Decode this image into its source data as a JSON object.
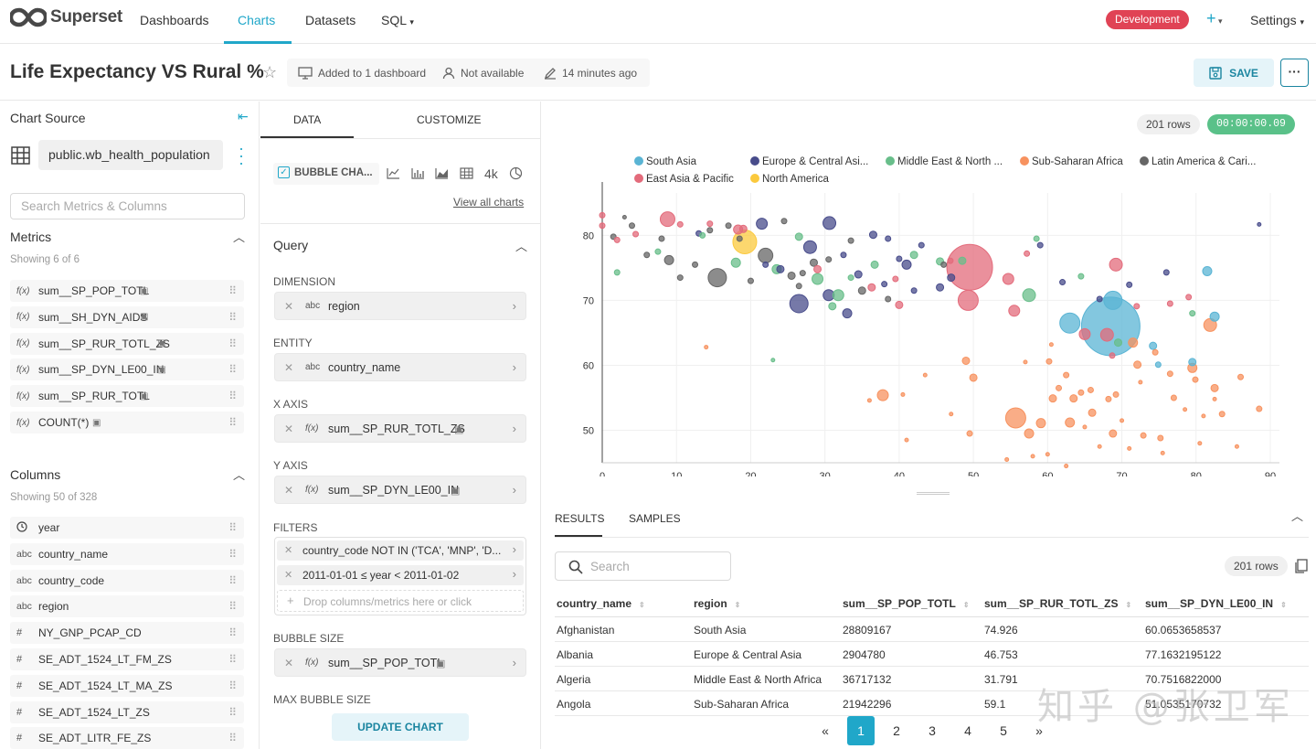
{
  "nav": {
    "brand": "Superset",
    "links": [
      "Dashboards",
      "Charts",
      "Datasets",
      "SQL"
    ],
    "active": "Charts",
    "env_badge": "Development",
    "settings": "Settings"
  },
  "header": {
    "title": "Life Expectancy VS Rural %",
    "added_to": "Added to 1 dashboard",
    "owner": "Not available",
    "modified": "14 minutes ago",
    "save_label": "SAVE"
  },
  "left": {
    "chart_source_label": "Chart Source",
    "dataset": "public.wb_health_population",
    "search_placeholder": "Search Metrics & Columns",
    "metrics_label": "Metrics",
    "metrics_count": "Showing 6 of 6",
    "metrics": [
      {
        "type": "f(x)",
        "name": "sum__SP_POP_TOTL"
      },
      {
        "type": "f(x)",
        "name": "sum__SH_DYN_AIDS"
      },
      {
        "type": "f(x)",
        "name": "sum__SP_RUR_TOTL_ZS"
      },
      {
        "type": "f(x)",
        "name": "sum__SP_DYN_LE00_IN"
      },
      {
        "type": "f(x)",
        "name": "sum__SP_RUR_TOTL"
      },
      {
        "type": "f(x)",
        "name": "COUNT(*)"
      }
    ],
    "columns_label": "Columns",
    "columns_count": "Showing 50 of 328",
    "columns": [
      {
        "type": "clock",
        "name": "year"
      },
      {
        "type": "abc",
        "name": "country_name"
      },
      {
        "type": "abc",
        "name": "country_code"
      },
      {
        "type": "abc",
        "name": "region"
      },
      {
        "type": "#",
        "name": "NY_GNP_PCAP_CD"
      },
      {
        "type": "#",
        "name": "SE_ADT_1524_LT_FM_ZS"
      },
      {
        "type": "#",
        "name": "SE_ADT_1524_LT_MA_ZS"
      },
      {
        "type": "#",
        "name": "SE_ADT_1524_LT_ZS"
      },
      {
        "type": "#",
        "name": "SE_ADT_LITR_FE_ZS"
      }
    ]
  },
  "mid": {
    "tabs": [
      "DATA",
      "CUSTOMIZE"
    ],
    "viz_type": "BUBBLE CHA...",
    "view_all": "View all charts",
    "query_label": "Query",
    "dimension_label": "DIMENSION",
    "dimension": "region",
    "entity_label": "ENTITY",
    "entity": "country_name",
    "x_axis_label": "X AXIS",
    "x_axis": "sum__SP_RUR_TOTL_ZS",
    "y_axis_label": "Y AXIS",
    "y_axis": "sum__SP_DYN_LE00_IN",
    "filters_label": "FILTERS",
    "filters": [
      "country_code NOT IN ('TCA', 'MNP', 'D...",
      "2011-01-01 ≤ year < 2011-01-02"
    ],
    "drop_hint": "Drop columns/metrics here or click",
    "bubble_size_label": "BUBBLE SIZE",
    "bubble_size": "sum__SP_POP_TOTL",
    "max_bubble_label": "MAX BUBBLE SIZE",
    "update_label": "UPDATE CHART",
    "abc": "abc",
    "fx": "f(x)",
    "extra_icon_4k": "4k"
  },
  "chart": {
    "rows": "201 rows",
    "timer": "00:00:00.09",
    "results_tab": "RESULTS",
    "samples_tab": "SAMPLES",
    "search_placeholder": "Search",
    "table_rows": "201 rows",
    "pages": [
      "«",
      "1",
      "2",
      "3",
      "4",
      "5",
      "»"
    ],
    "current_page": "1"
  },
  "table": {
    "columns": [
      "country_name",
      "region",
      "sum__SP_POP_TOTL",
      "sum__SP_RUR_TOTL_ZS",
      "sum__SP_DYN_LE00_IN"
    ],
    "rows": [
      [
        "Afghanistan",
        "South Asia",
        "28809167",
        "74.926",
        "60.0653658537"
      ],
      [
        "Albania",
        "Europe & Central Asia",
        "2904780",
        "46.753",
        "77.1632195122"
      ],
      [
        "Algeria",
        "Middle East & North Africa",
        "36717132",
        "31.791",
        "70.7516822000"
      ],
      [
        "Angola",
        "Sub-Saharan Africa",
        "21942296",
        "59.1",
        "51.0535170732"
      ]
    ]
  },
  "watermark": "知乎 @张卫军",
  "chart_data": {
    "type": "scatter",
    "xlim": [
      0,
      90
    ],
    "ylim": [
      45,
      84
    ],
    "xticks": [
      0,
      10,
      20,
      30,
      40,
      50,
      60,
      70,
      80,
      90
    ],
    "yticks": [
      50,
      60,
      70,
      80
    ],
    "legend_position": "top",
    "series": [
      {
        "name": "South Asia",
        "color": "#5ab4d4",
        "points": [
          [
            74.9,
            60.1,
            3
          ],
          [
            68.5,
            66,
            32
          ],
          [
            63,
            66.5,
            11
          ],
          [
            68.8,
            70,
            10
          ],
          [
            81.5,
            74.5,
            5
          ],
          [
            82.5,
            67.5,
            5
          ],
          [
            74.2,
            63,
            4
          ],
          [
            79.5,
            60.5,
            4
          ]
        ]
      },
      {
        "name": "Europe & Central Asi...",
        "color": "#484c8b",
        "points": [
          [
            26.5,
            69.5,
            10
          ],
          [
            28,
            78.2,
            7
          ],
          [
            21.5,
            81.8,
            6
          ],
          [
            30.5,
            70.8,
            6
          ],
          [
            33,
            68,
            5
          ],
          [
            36.5,
            80.1,
            4
          ],
          [
            41,
            75.5,
            5
          ],
          [
            45.5,
            72,
            4
          ],
          [
            30.6,
            81.9,
            7
          ],
          [
            34.5,
            74,
            4
          ],
          [
            38,
            72.5,
            3
          ],
          [
            24,
            74.8,
            4
          ],
          [
            38.5,
            79.5,
            3
          ],
          [
            13,
            80.3,
            3
          ],
          [
            42,
            71.5,
            3
          ],
          [
            47,
            73.5,
            4
          ],
          [
            43,
            78.5,
            3
          ],
          [
            22,
            75.5,
            3
          ],
          [
            59,
            78.5,
            3
          ],
          [
            32.5,
            77,
            3
          ],
          [
            40,
            76.4,
            3
          ],
          [
            67,
            70.2,
            3
          ],
          [
            62,
            72.8,
            3
          ],
          [
            71,
            72.4,
            3
          ],
          [
            76,
            74.3,
            3
          ],
          [
            88.5,
            81.7,
            2
          ]
        ]
      },
      {
        "name": "Middle East & North ...",
        "color": "#68be8a",
        "points": [
          [
            31.8,
            70.8,
            6
          ],
          [
            29,
            73.3,
            6
          ],
          [
            18,
            75.8,
            5
          ],
          [
            23.5,
            74.8,
            5
          ],
          [
            57.5,
            70.8,
            7
          ],
          [
            42,
            77,
            4
          ],
          [
            36.7,
            75.5,
            4
          ],
          [
            26.5,
            79.8,
            4
          ],
          [
            48.5,
            76.1,
            4
          ],
          [
            13.5,
            80,
            3
          ],
          [
            7.5,
            77.5,
            3
          ],
          [
            2,
            74.3,
            3
          ],
          [
            33.5,
            73.5,
            3
          ],
          [
            31,
            69.1,
            4
          ],
          [
            45.5,
            76,
            4
          ],
          [
            58.5,
            79.5,
            3
          ],
          [
            64.5,
            73.7,
            3
          ],
          [
            79.5,
            68,
            3
          ],
          [
            23,
            60.8,
            2
          ],
          [
            69.5,
            63.5,
            4
          ]
        ]
      },
      {
        "name": "Sub-Saharan Africa",
        "color": "#f7925f",
        "points": [
          [
            59.1,
            51.1,
            5
          ],
          [
            55.7,
            51.9,
            11
          ],
          [
            49,
            60.7,
            4
          ],
          [
            50,
            58.1,
            4
          ],
          [
            37.8,
            55.4,
            6
          ],
          [
            60.2,
            60.6,
            3
          ],
          [
            63.5,
            54.9,
            4
          ],
          [
            68.8,
            49.5,
            4
          ],
          [
            71.5,
            63.5,
            5
          ],
          [
            63,
            51.2,
            5
          ],
          [
            66,
            52.7,
            4
          ],
          [
            57.5,
            49.5,
            5
          ],
          [
            60.7,
            54.9,
            4
          ],
          [
            72.1,
            60.1,
            4
          ],
          [
            79.5,
            59.6,
            5
          ],
          [
            82.5,
            56.5,
            4
          ],
          [
            81.9,
            66.2,
            7
          ],
          [
            79.9,
            57.8,
            3
          ],
          [
            77,
            55,
            3
          ],
          [
            72.9,
            49.2,
            3
          ],
          [
            75.2,
            48.8,
            3
          ],
          [
            64.5,
            55.8,
            3
          ],
          [
            68.2,
            54.8,
            3
          ],
          [
            74.5,
            62,
            3
          ],
          [
            83.5,
            52.5,
            3
          ],
          [
            86,
            58.2,
            3
          ],
          [
            88.5,
            53.3,
            3
          ],
          [
            54.5,
            45.5,
            2
          ],
          [
            58,
            46,
            2
          ],
          [
            62.5,
            44.5,
            2
          ],
          [
            67,
            47.5,
            2
          ],
          [
            71,
            47.2,
            2
          ],
          [
            75.5,
            46.5,
            2
          ],
          [
            80.5,
            48,
            2
          ],
          [
            85.5,
            47.5,
            2
          ],
          [
            49.5,
            49.5,
            3
          ],
          [
            43.5,
            58.5,
            2
          ],
          [
            47,
            52.5,
            2
          ],
          [
            40.5,
            55.5,
            2
          ],
          [
            60,
            46.3,
            2
          ],
          [
            65,
            50.5,
            2
          ],
          [
            70,
            51.5,
            2
          ],
          [
            61.5,
            56.5,
            3
          ],
          [
            78.5,
            53.2,
            2
          ],
          [
            82.5,
            54.8,
            2
          ],
          [
            14,
            62.8,
            2
          ],
          [
            36,
            54.6,
            2
          ],
          [
            41,
            48.5,
            2
          ],
          [
            65.8,
            56.2,
            3
          ],
          [
            69.2,
            55.5,
            3
          ],
          [
            72.5,
            57.4,
            2
          ],
          [
            76.5,
            58.7,
            3
          ],
          [
            81,
            52.2,
            2
          ],
          [
            57,
            60.5,
            2
          ],
          [
            60.5,
            63.2,
            2
          ],
          [
            62.5,
            58.5,
            3
          ]
        ]
      },
      {
        "name": "Latin America & Cari...",
        "color": "#666666",
        "points": [
          [
            15.5,
            73.5,
            10
          ],
          [
            22,
            76.9,
            8
          ],
          [
            25.5,
            73.8,
            4
          ],
          [
            9,
            76.2,
            5
          ],
          [
            28.5,
            75.8,
            4
          ],
          [
            27,
            74.2,
            3
          ],
          [
            4,
            81.5,
            3
          ],
          [
            6,
            77,
            3
          ],
          [
            10.5,
            73.5,
            3
          ],
          [
            18.5,
            79.5,
            3
          ],
          [
            35,
            71.5,
            4
          ],
          [
            38.5,
            70.2,
            3
          ],
          [
            12.5,
            75.5,
            3
          ],
          [
            24.5,
            82.2,
            3
          ],
          [
            8,
            79.5,
            3
          ],
          [
            46,
            75.5,
            3
          ],
          [
            3,
            82.8,
            2
          ],
          [
            26.5,
            72.2,
            3
          ],
          [
            20,
            73,
            3
          ],
          [
            17,
            81.5,
            3
          ],
          [
            30.5,
            76.3,
            3
          ],
          [
            14.5,
            80.8,
            3
          ],
          [
            33.5,
            79.2,
            3
          ],
          [
            1.5,
            79.8,
            3
          ]
        ]
      },
      {
        "name": "East Asia & Pacific",
        "color": "#e36b7b",
        "points": [
          [
            49.5,
            75.1,
            25
          ],
          [
            49.3,
            70,
            11
          ],
          [
            65,
            64.8,
            6
          ],
          [
            69.2,
            75.5,
            7
          ],
          [
            55.5,
            68.4,
            6
          ],
          [
            54.7,
            73.3,
            6
          ],
          [
            8.8,
            82.5,
            8
          ],
          [
            18.3,
            80.9,
            5
          ],
          [
            29,
            74.8,
            4
          ],
          [
            39.5,
            73.3,
            3
          ],
          [
            36.3,
            72,
            4
          ],
          [
            40,
            69.3,
            4
          ],
          [
            57.2,
            77.2,
            3
          ],
          [
            68.7,
            61.5,
            3
          ],
          [
            72,
            69.1,
            3
          ],
          [
            0,
            83.1,
            3
          ],
          [
            14.5,
            81.8,
            3
          ],
          [
            4.5,
            80.2,
            3
          ],
          [
            10.5,
            81.7,
            3
          ],
          [
            2,
            79.3,
            3
          ],
          [
            19,
            81,
            4
          ],
          [
            46.9,
            76.1,
            3
          ],
          [
            0,
            81.5,
            3
          ],
          [
            76.5,
            69.5,
            3
          ],
          [
            79,
            70.5,
            3
          ],
          [
            68,
            64.7,
            7
          ]
        ]
      },
      {
        "name": "North America",
        "color": "#fbc93d",
        "points": [
          [
            19.2,
            79,
            13
          ]
        ]
      }
    ]
  }
}
